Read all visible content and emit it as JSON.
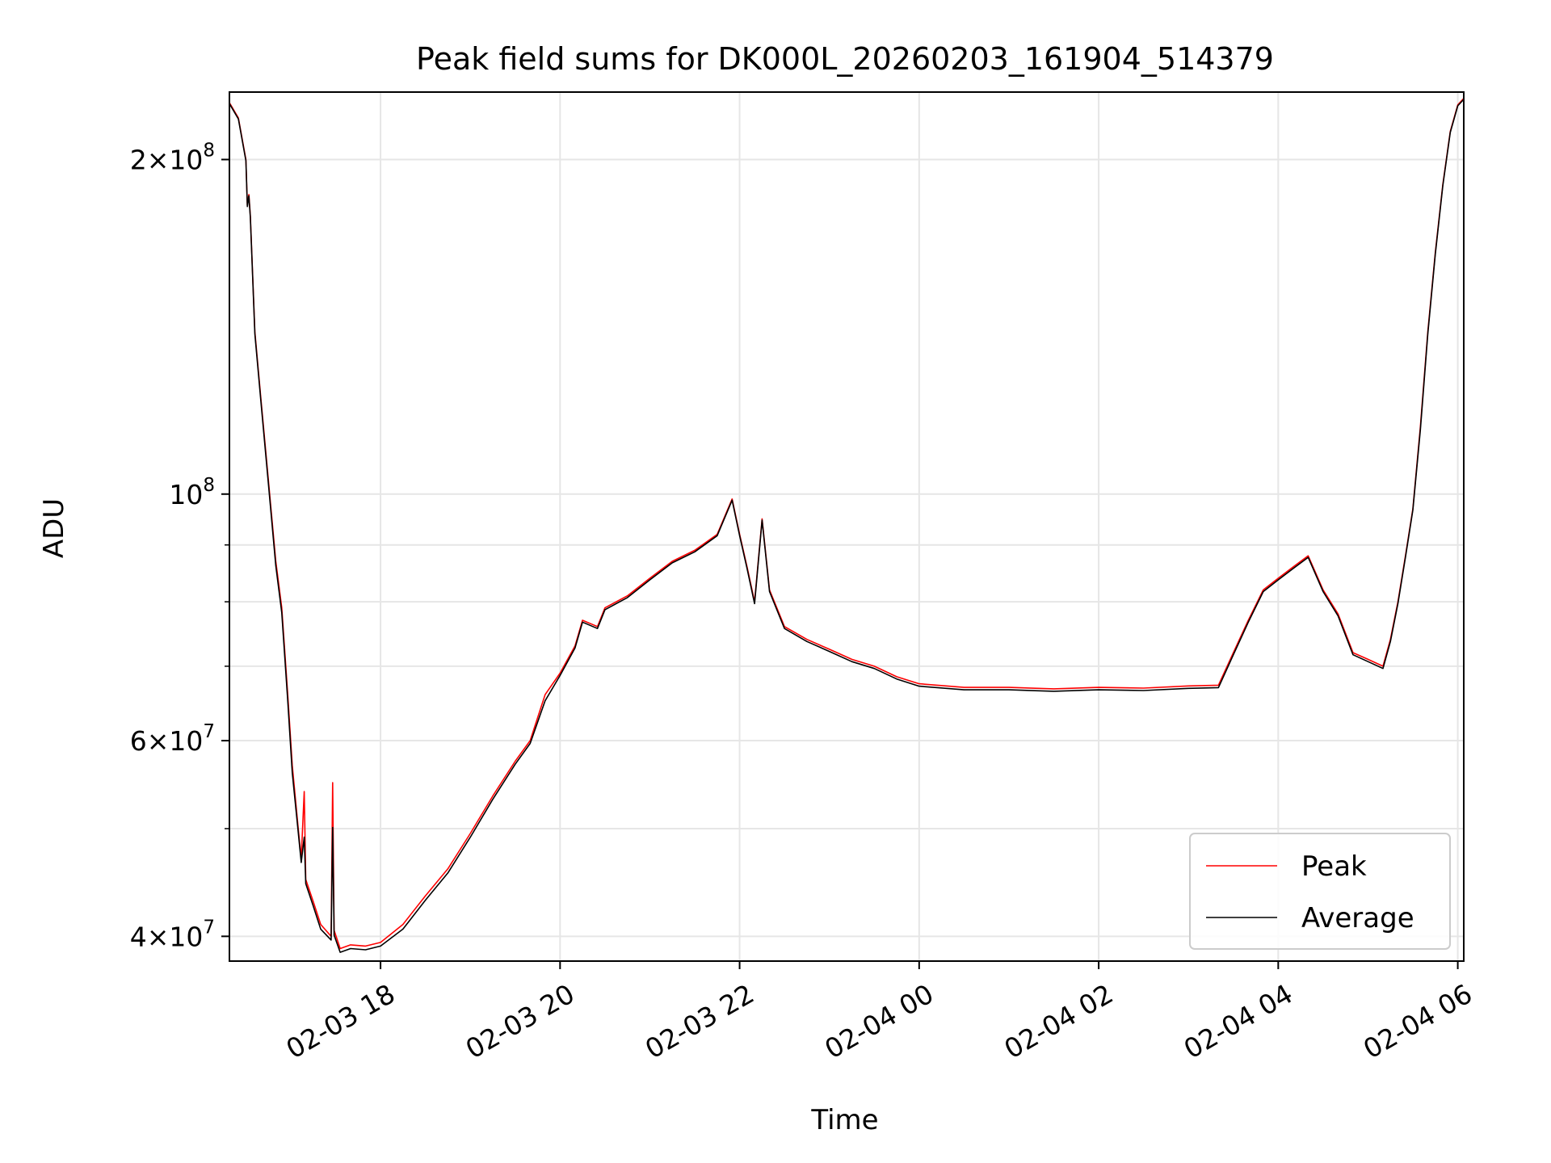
{
  "chart_data": {
    "type": "line",
    "title": "Peak field sums for DK000L_20260203_161904_514379",
    "xlabel": "Time",
    "ylabel": "ADU",
    "yscale": "log",
    "ylim": [
      38000000,
      230000000
    ],
    "xlim": [
      "2026-02-03 16:19",
      "2026-02-04 06:04"
    ],
    "grid": true,
    "legend_position": "bottom-right",
    "x_ticks": [
      {
        "t": "2026-02-03 18:00",
        "label": "02-03 18"
      },
      {
        "t": "2026-02-03 20:00",
        "label": "02-03 20"
      },
      {
        "t": "2026-02-03 22:00",
        "label": "02-03 22"
      },
      {
        "t": "2026-02-04 00:00",
        "label": "02-04 00"
      },
      {
        "t": "2026-02-04 02:00",
        "label": "02-04 02"
      },
      {
        "t": "2026-02-04 04:00",
        "label": "02-04 04"
      },
      {
        "t": "2026-02-04 06:00",
        "label": "02-04 06"
      }
    ],
    "y_ticks": [
      {
        "value": 40000000,
        "mantissa": "4",
        "exponent": "7"
      },
      {
        "value": 60000000,
        "mantissa": "6",
        "exponent": "7"
      },
      {
        "value": 100000000,
        "mantissa": "",
        "exponent": "8"
      },
      {
        "value": 200000000,
        "mantissa": "2",
        "exponent": "8"
      }
    ],
    "y_minor_ticks": [
      50000000,
      70000000,
      80000000,
      90000000
    ],
    "series": [
      {
        "name": "Peak",
        "color": "#ff0000",
        "points": [
          [
            "2026-02-03 16:19",
            225000000
          ],
          [
            "2026-02-03 16:25",
            218000000
          ],
          [
            "2026-02-03 16:30",
            200000000
          ],
          [
            "2026-02-03 16:31",
            182000000
          ],
          [
            "2026-02-03 16:32",
            186000000
          ],
          [
            "2026-02-03 16:33",
            178000000
          ],
          [
            "2026-02-03 16:36",
            140000000
          ],
          [
            "2026-02-03 16:40",
            122000000
          ],
          [
            "2026-02-03 16:45",
            103000000
          ],
          [
            "2026-02-03 16:50",
            87000000
          ],
          [
            "2026-02-03 16:54",
            79000000
          ],
          [
            "2026-02-03 16:58",
            66000000
          ],
          [
            "2026-02-03 17:01",
            57000000
          ],
          [
            "2026-02-03 17:05",
            50000000
          ],
          [
            "2026-02-03 17:07",
            47000000
          ],
          [
            "2026-02-03 17:09",
            54000000
          ],
          [
            "2026-02-03 17:10",
            45000000
          ],
          [
            "2026-02-03 17:15",
            43000000
          ],
          [
            "2026-02-03 17:20",
            41000000
          ],
          [
            "2026-02-03 17:27",
            40000000
          ],
          [
            "2026-02-03 17:28",
            55000000
          ],
          [
            "2026-02-03 17:29",
            40500000
          ],
          [
            "2026-02-03 17:33",
            39000000
          ],
          [
            "2026-02-03 17:40",
            39300000
          ],
          [
            "2026-02-03 17:50",
            39200000
          ],
          [
            "2026-02-03 18:00",
            39500000
          ],
          [
            "2026-02-03 18:15",
            41000000
          ],
          [
            "2026-02-03 18:30",
            43500000
          ],
          [
            "2026-02-03 18:45",
            46000000
          ],
          [
            "2026-02-03 19:00",
            49500000
          ],
          [
            "2026-02-03 19:15",
            53500000
          ],
          [
            "2026-02-03 19:30",
            57500000
          ],
          [
            "2026-02-03 19:40",
            60000000
          ],
          [
            "2026-02-03 19:50",
            66000000
          ],
          [
            "2026-02-03 20:00",
            69000000
          ],
          [
            "2026-02-03 20:10",
            73000000
          ],
          [
            "2026-02-03 20:15",
            77000000
          ],
          [
            "2026-02-03 20:25",
            76000000
          ],
          [
            "2026-02-03 20:30",
            79000000
          ],
          [
            "2026-02-03 20:45",
            81000000
          ],
          [
            "2026-02-03 21:00",
            84000000
          ],
          [
            "2026-02-03 21:15",
            87000000
          ],
          [
            "2026-02-03 21:30",
            89000000
          ],
          [
            "2026-02-03 21:45",
            92000000
          ],
          [
            "2026-02-03 21:55",
            99000000
          ],
          [
            "2026-02-03 22:00",
            92000000
          ],
          [
            "2026-02-03 22:05",
            86000000
          ],
          [
            "2026-02-03 22:10",
            80000000
          ],
          [
            "2026-02-03 22:15",
            95000000
          ],
          [
            "2026-02-03 22:20",
            82000000
          ],
          [
            "2026-02-03 22:30",
            76000000
          ],
          [
            "2026-02-03 22:45",
            74000000
          ],
          [
            "2026-02-03 23:00",
            72500000
          ],
          [
            "2026-02-03 23:15",
            71000000
          ],
          [
            "2026-02-03 23:30",
            70000000
          ],
          [
            "2026-02-03 23:45",
            68500000
          ],
          [
            "2026-02-04 00:00",
            67500000
          ],
          [
            "2026-02-04 00:30",
            67000000
          ],
          [
            "2026-02-04 01:00",
            67000000
          ],
          [
            "2026-02-04 01:30",
            66800000
          ],
          [
            "2026-02-04 02:00",
            67000000
          ],
          [
            "2026-02-04 02:30",
            66900000
          ],
          [
            "2026-02-04 03:00",
            67200000
          ],
          [
            "2026-02-04 03:20",
            67300000
          ],
          [
            "2026-02-04 03:30",
            72000000
          ],
          [
            "2026-02-04 03:40",
            77000000
          ],
          [
            "2026-02-04 03:50",
            82000000
          ],
          [
            "2026-02-04 04:00",
            84000000
          ],
          [
            "2026-02-04 04:10",
            86000000
          ],
          [
            "2026-02-04 04:20",
            88000000
          ],
          [
            "2026-02-04 04:30",
            82000000
          ],
          [
            "2026-02-04 04:40",
            78000000
          ],
          [
            "2026-02-04 04:50",
            72000000
          ],
          [
            "2026-02-04 05:00",
            71000000
          ],
          [
            "2026-02-04 05:10",
            70000000
          ],
          [
            "2026-02-04 05:15",
            74000000
          ],
          [
            "2026-02-04 05:20",
            80000000
          ],
          [
            "2026-02-04 05:25",
            88000000
          ],
          [
            "2026-02-04 05:30",
            97000000
          ],
          [
            "2026-02-04 05:35",
            115000000
          ],
          [
            "2026-02-04 05:40",
            140000000
          ],
          [
            "2026-02-04 05:45",
            165000000
          ],
          [
            "2026-02-04 05:50",
            190000000
          ],
          [
            "2026-02-04 05:55",
            212000000
          ],
          [
            "2026-02-04 06:00",
            224000000
          ],
          [
            "2026-02-04 06:04",
            227000000
          ]
        ]
      },
      {
        "name": "Average",
        "color": "#000000",
        "points": [
          [
            "2026-02-03 16:19",
            224000000
          ],
          [
            "2026-02-03 16:25",
            217000000
          ],
          [
            "2026-02-03 16:30",
            199000000
          ],
          [
            "2026-02-03 16:31",
            181000000
          ],
          [
            "2026-02-03 16:32",
            185000000
          ],
          [
            "2026-02-03 16:33",
            177000000
          ],
          [
            "2026-02-03 16:36",
            139000000
          ],
          [
            "2026-02-03 16:40",
            121000000
          ],
          [
            "2026-02-03 16:45",
            102000000
          ],
          [
            "2026-02-03 16:50",
            86000000
          ],
          [
            "2026-02-03 16:54",
            78000000
          ],
          [
            "2026-02-03 16:58",
            65000000
          ],
          [
            "2026-02-03 17:01",
            56000000
          ],
          [
            "2026-02-03 17:05",
            49500000
          ],
          [
            "2026-02-03 17:07",
            46500000
          ],
          [
            "2026-02-03 17:09",
            49000000
          ],
          [
            "2026-02-03 17:10",
            44500000
          ],
          [
            "2026-02-03 17:15",
            42500000
          ],
          [
            "2026-02-03 17:20",
            40500000
          ],
          [
            "2026-02-03 17:27",
            39600000
          ],
          [
            "2026-02-03 17:28",
            50000000
          ],
          [
            "2026-02-03 17:29",
            40000000
          ],
          [
            "2026-02-03 17:33",
            38600000
          ],
          [
            "2026-02-03 17:40",
            38900000
          ],
          [
            "2026-02-03 17:50",
            38800000
          ],
          [
            "2026-02-03 18:00",
            39100000
          ],
          [
            "2026-02-03 18:15",
            40500000
          ],
          [
            "2026-02-03 18:30",
            43000000
          ],
          [
            "2026-02-03 18:45",
            45500000
          ],
          [
            "2026-02-03 19:00",
            49000000
          ],
          [
            "2026-02-03 19:15",
            53000000
          ],
          [
            "2026-02-03 19:30",
            57000000
          ],
          [
            "2026-02-03 19:40",
            59500000
          ],
          [
            "2026-02-03 19:50",
            65000000
          ],
          [
            "2026-02-03 20:00",
            68500000
          ],
          [
            "2026-02-03 20:10",
            72500000
          ],
          [
            "2026-02-03 20:15",
            76500000
          ],
          [
            "2026-02-03 20:25",
            75500000
          ],
          [
            "2026-02-03 20:30",
            78500000
          ],
          [
            "2026-02-03 20:45",
            80500000
          ],
          [
            "2026-02-03 21:00",
            83500000
          ],
          [
            "2026-02-03 21:15",
            86500000
          ],
          [
            "2026-02-03 21:30",
            88500000
          ],
          [
            "2026-02-03 21:45",
            91500000
          ],
          [
            "2026-02-03 21:55",
            98500000
          ],
          [
            "2026-02-03 22:00",
            91500000
          ],
          [
            "2026-02-03 22:05",
            85500000
          ],
          [
            "2026-02-03 22:10",
            79500000
          ],
          [
            "2026-02-03 22:15",
            94500000
          ],
          [
            "2026-02-03 22:20",
            81500000
          ],
          [
            "2026-02-03 22:30",
            75500000
          ],
          [
            "2026-02-03 22:45",
            73500000
          ],
          [
            "2026-02-03 23:00",
            72000000
          ],
          [
            "2026-02-03 23:15",
            70500000
          ],
          [
            "2026-02-03 23:30",
            69500000
          ],
          [
            "2026-02-03 23:45",
            68000000
          ],
          [
            "2026-02-04 00:00",
            67000000
          ],
          [
            "2026-02-04 00:30",
            66500000
          ],
          [
            "2026-02-04 01:00",
            66500000
          ],
          [
            "2026-02-04 01:30",
            66300000
          ],
          [
            "2026-02-04 02:00",
            66500000
          ],
          [
            "2026-02-04 02:30",
            66400000
          ],
          [
            "2026-02-04 03:00",
            66700000
          ],
          [
            "2026-02-04 03:20",
            66800000
          ],
          [
            "2026-02-04 03:30",
            71500000
          ],
          [
            "2026-02-04 03:40",
            76500000
          ],
          [
            "2026-02-04 03:50",
            81500000
          ],
          [
            "2026-02-04 04:00",
            83500000
          ],
          [
            "2026-02-04 04:10",
            85500000
          ],
          [
            "2026-02-04 04:20",
            87500000
          ],
          [
            "2026-02-04 04:30",
            81500000
          ],
          [
            "2026-02-04 04:40",
            77500000
          ],
          [
            "2026-02-04 04:50",
            71500000
          ],
          [
            "2026-02-04 05:00",
            70500000
          ],
          [
            "2026-02-04 05:10",
            69500000
          ],
          [
            "2026-02-04 05:15",
            73500000
          ],
          [
            "2026-02-04 05:20",
            79500000
          ],
          [
            "2026-02-04 05:25",
            87500000
          ],
          [
            "2026-02-04 05:30",
            96500000
          ],
          [
            "2026-02-04 05:35",
            114000000
          ],
          [
            "2026-02-04 05:40",
            139000000
          ],
          [
            "2026-02-04 05:45",
            164000000
          ],
          [
            "2026-02-04 05:50",
            189000000
          ],
          [
            "2026-02-04 05:55",
            211000000
          ],
          [
            "2026-02-04 06:00",
            223000000
          ],
          [
            "2026-02-04 06:04",
            226000000
          ]
        ]
      }
    ]
  }
}
